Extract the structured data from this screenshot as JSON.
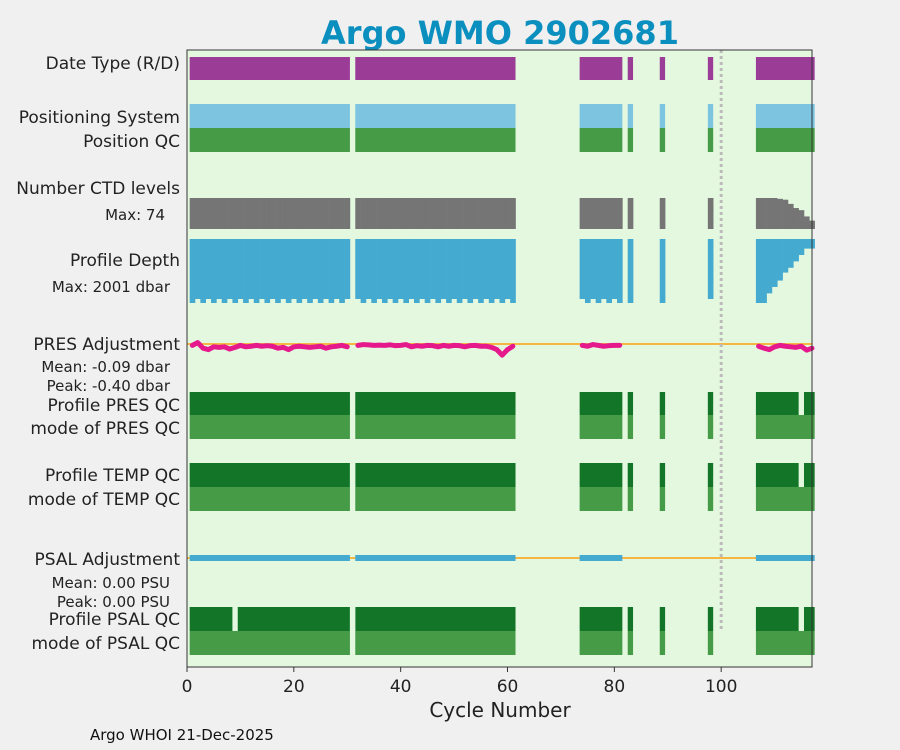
{
  "colors": {
    "bg": "#f0f0f0",
    "plot_bg": "#e4f8e0",
    "title": "#0b8fbf",
    "purple": "#9b3d97",
    "light_blue": "#7cc4df",
    "green": "#469c46",
    "dark_green": "#137527",
    "gray": "#757575",
    "blue": "#44aad0",
    "magenta": "#e6198c",
    "orange": "#f5b642",
    "annot_blue": "#1a8fc4",
    "dotted": "#bbbbbb"
  },
  "footer": "Argo WHOI 21-Dec-2025",
  "chart_data": {
    "type": "timeline",
    "title": "Argo WMO 2902681",
    "xlabel": "Cycle Number",
    "xlim": [
      0,
      117
    ],
    "xticks": [
      0,
      20,
      40,
      60,
      80,
      100
    ],
    "reference_cycle": 100,
    "cycle_segments": [
      [
        1,
        30
      ],
      [
        32,
        61
      ],
      [
        74,
        81
      ],
      [
        83,
        83
      ],
      [
        89,
        89
      ],
      [
        98,
        98
      ],
      [
        107,
        117
      ]
    ],
    "rows": {
      "date_type": "Date Type (R/D)",
      "positioning_system": "Positioning System",
      "position_qc": "Position QC",
      "n_ctd_levels": "Number CTD levels",
      "n_ctd_max": "Max: 74",
      "profile_depth": "Profile Depth",
      "profile_depth_max": "Max: 2001 dbar",
      "pres_adjustment": "PRES Adjustment",
      "pres_mean": "Mean: -0.09 dbar",
      "pres_peak": "Peak: -0.40 dbar",
      "profile_pres_qc": "Profile PRES QC",
      "mode_pres_qc": "mode of PRES QC",
      "profile_temp_qc": "Profile TEMP QC",
      "mode_temp_qc": "mode of TEMP QC",
      "psal_adjustment": "PSAL Adjustment",
      "psal_mean": "Mean: 0.00 PSU",
      "psal_peak": "Peak: 0.00 PSU",
      "profile_psal_qc": "Profile PSAL QC",
      "mode_psal_qc": "mode of PSAL QC"
    },
    "ctd_levels_tail": {
      "cycles": [
        107,
        108,
        109,
        110,
        111,
        112,
        113,
        114,
        115,
        116,
        117
      ],
      "values": [
        74,
        74,
        74,
        74,
        72,
        70,
        60,
        50,
        45,
        30,
        20
      ]
    },
    "profile_depth_tail": {
      "cycles": [
        107,
        108,
        109,
        110,
        111,
        112,
        113,
        114,
        115,
        116,
        117
      ],
      "values": [
        2001,
        2001,
        1700,
        1500,
        1300,
        1050,
        900,
        700,
        500,
        300,
        300
      ]
    },
    "profile_temp_qc_light_cycles": [
      31,
      115
    ],
    "profile_pres_qc_light_cycles": [
      115
    ],
    "profile_psal_qc_light_cycles": [
      9,
      31,
      115
    ],
    "pres_adjustment_values": {
      "cycles": [
        1,
        2,
        3,
        4,
        5,
        6,
        7,
        8,
        9,
        10,
        11,
        12,
        13,
        14,
        15,
        16,
        17,
        18,
        19,
        20,
        21,
        22,
        23,
        24,
        25,
        26,
        27,
        28,
        29,
        30,
        32,
        33,
        34,
        35,
        36,
        37,
        38,
        39,
        40,
        41,
        42,
        43,
        44,
        45,
        46,
        47,
        48,
        49,
        50,
        51,
        52,
        53,
        54,
        55,
        56,
        57,
        58,
        59,
        60,
        61,
        74,
        75,
        76,
        77,
        78,
        79,
        80,
        81,
        107,
        108,
        109,
        110,
        111,
        112,
        113,
        114,
        115,
        116,
        117
      ],
      "values": [
        -0.05,
        0.05,
        -0.15,
        -0.2,
        -0.1,
        -0.12,
        -0.1,
        -0.18,
        -0.12,
        -0.05,
        -0.1,
        -0.08,
        -0.05,
        -0.08,
        -0.06,
        -0.08,
        -0.15,
        -0.12,
        -0.2,
        -0.1,
        -0.08,
        -0.1,
        -0.12,
        -0.1,
        -0.08,
        -0.15,
        -0.1,
        -0.08,
        -0.05,
        -0.1,
        -0.05,
        -0.02,
        -0.03,
        -0.05,
        -0.04,
        -0.05,
        -0.03,
        -0.06,
        -0.05,
        -0.02,
        -0.1,
        -0.06,
        -0.08,
        -0.05,
        -0.06,
        -0.1,
        -0.05,
        -0.08,
        -0.05,
        -0.06,
        -0.1,
        -0.06,
        -0.05,
        -0.08,
        -0.08,
        -0.12,
        -0.2,
        -0.4,
        -0.2,
        -0.08,
        -0.05,
        -0.08,
        -0.02,
        -0.05,
        -0.08,
        -0.06,
        -0.05,
        -0.05,
        -0.08,
        -0.15,
        -0.2,
        -0.1,
        -0.05,
        -0.08,
        -0.1,
        -0.12,
        -0.08,
        -0.22,
        -0.15
      ]
    }
  }
}
